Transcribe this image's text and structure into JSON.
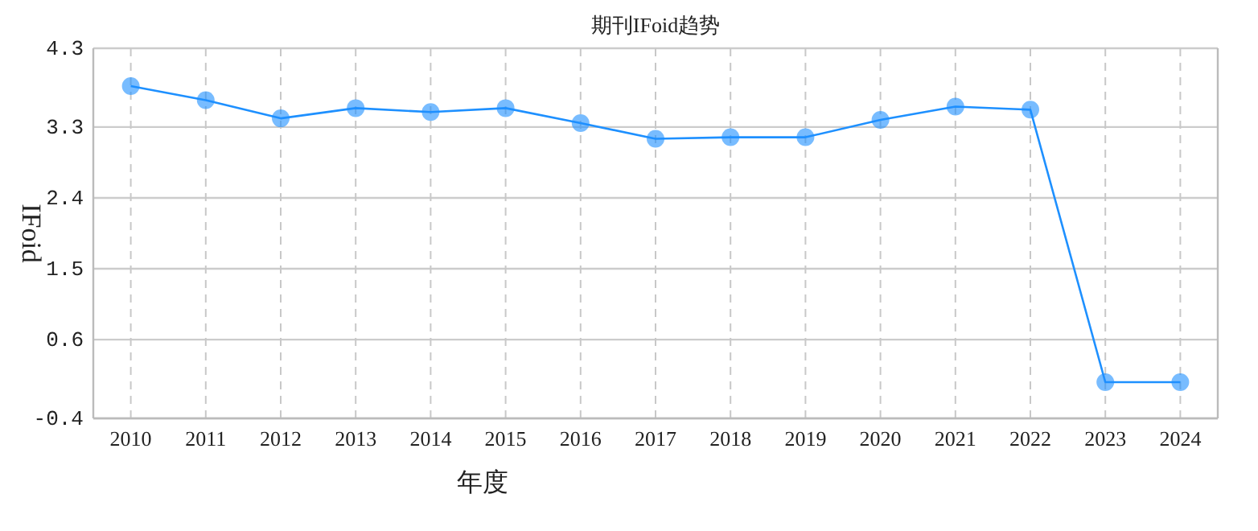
{
  "chart_data": {
    "type": "line",
    "title": "期刊IFoid趋势",
    "xlabel": "年度",
    "ylabel": "IFoid",
    "categories": [
      "2010",
      "2011",
      "2012",
      "2013",
      "2014",
      "2015",
      "2016",
      "2017",
      "2018",
      "2019",
      "2020",
      "2021",
      "2022",
      "2023",
      "2024"
    ],
    "series": [
      {
        "color": "#1e90ff",
        "values": [
          3.82,
          3.64,
          3.41,
          3.54,
          3.49,
          3.54,
          3.35,
          3.15,
          3.17,
          3.17,
          3.39,
          3.56,
          3.52,
          0.06,
          0.06
        ]
      }
    ],
    "ylim": [
      -0.4,
      4.3
    ],
    "yticks": [
      -0.4,
      0.6,
      1.5,
      2.4,
      3.3,
      4.3
    ],
    "grid": true,
    "marker": "circle",
    "line_style": "solid"
  }
}
